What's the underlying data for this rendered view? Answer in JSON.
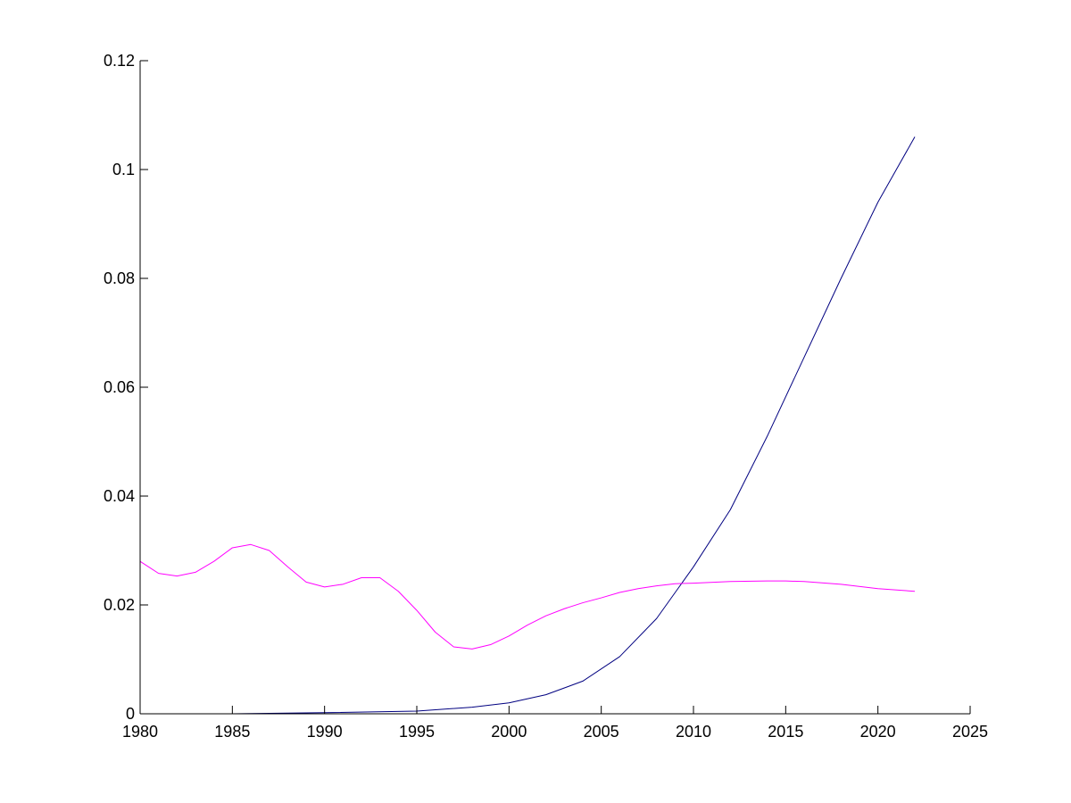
{
  "chart_data": {
    "type": "line",
    "title": "",
    "xlabel": "",
    "ylabel": "",
    "xlim": [
      1980,
      2025
    ],
    "ylim": [
      0,
      0.12
    ],
    "x_ticks": [
      1980,
      1985,
      1990,
      1995,
      2000,
      2005,
      2010,
      2015,
      2020,
      2025
    ],
    "y_ticks": [
      0,
      0.02,
      0.04,
      0.06,
      0.08,
      0.1,
      0.12
    ],
    "x_tick_labels": [
      "1980",
      "1985",
      "1990",
      "1995",
      "2000",
      "2005",
      "2010",
      "2015",
      "2020",
      "2025"
    ],
    "y_tick_labels": [
      "0",
      "0.02",
      "0.04",
      "0.06",
      "0.08",
      "0.1",
      "0.12"
    ],
    "grid": false,
    "axis_color": "#000000",
    "series": [
      {
        "color": "#000080",
        "x": [
          1980,
          1985,
          1990,
          1995,
          1998,
          2000,
          2002,
          2004,
          2006,
          2008,
          2010,
          2012,
          2014,
          2016,
          2018,
          2020,
          2021,
          2022
        ],
        "y": [
          0.0,
          0.0,
          0.0002,
          0.0005,
          0.0012,
          0.002,
          0.0035,
          0.006,
          0.0105,
          0.0175,
          0.027,
          0.0375,
          0.051,
          0.0655,
          0.08,
          0.094,
          0.1,
          0.106
        ]
      },
      {
        "color": "#ff00ff",
        "x": [
          1980,
          1981,
          1982,
          1983,
          1984,
          1985,
          1986,
          1987,
          1988,
          1989,
          1990,
          1991,
          1992,
          1993,
          1994,
          1995,
          1996,
          1997,
          1998,
          1999,
          2000,
          2001,
          2002,
          2003,
          2004,
          2005,
          2006,
          2007,
          2008,
          2009,
          2010,
          2012,
          2014,
          2015,
          2016,
          2018,
          2020,
          2022
        ],
        "y": [
          0.028,
          0.0258,
          0.0253,
          0.026,
          0.028,
          0.0305,
          0.0311,
          0.03,
          0.027,
          0.0242,
          0.0233,
          0.0238,
          0.025,
          0.025,
          0.0225,
          0.019,
          0.015,
          0.0123,
          0.0119,
          0.0127,
          0.0143,
          0.0163,
          0.018,
          0.0193,
          0.0204,
          0.0213,
          0.0223,
          0.023,
          0.0235,
          0.0239,
          0.024,
          0.0243,
          0.0244,
          0.0244,
          0.0243,
          0.0238,
          0.023,
          0.0225
        ]
      }
    ]
  }
}
